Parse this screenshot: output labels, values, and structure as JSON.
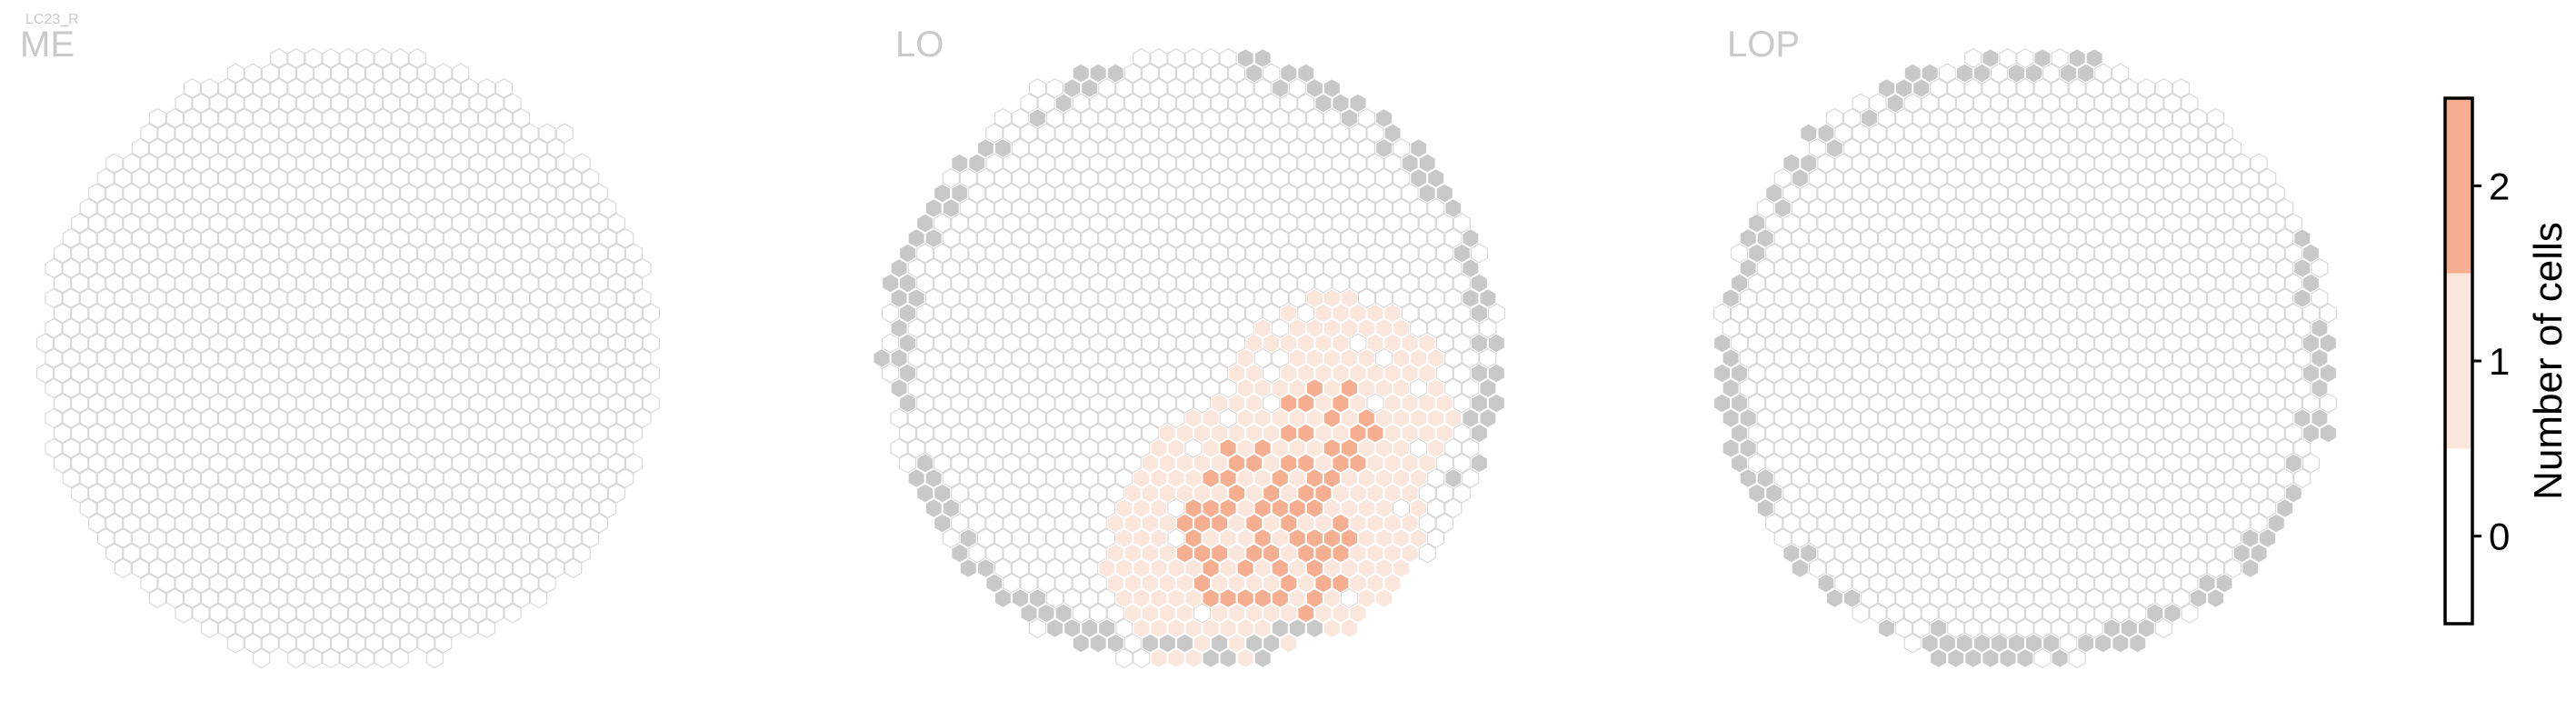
{
  "figure_title": "LC23_R",
  "chart_data": [
    {
      "type": "heatmap",
      "title": "ME",
      "grid_on": false,
      "description": "hexagonal eye map; all columns have 0 cells",
      "default_value": 0,
      "hot_regions": [],
      "outside_cells": []
    },
    {
      "type": "heatmap",
      "title": "LO",
      "grid_on": false,
      "default_value": 0,
      "hot_regions": [
        {
          "value": 1,
          "center": [
            0.22,
            0.62
          ],
          "radius": 0.5
        },
        {
          "value": 1,
          "center": [
            0.38,
            0.55
          ],
          "radius": 0.35
        },
        {
          "value": 1,
          "center": [
            0.45,
            0.18
          ],
          "radius": 0.38
        },
        {
          "value": 2,
          "center": [
            0.25,
            0.55
          ],
          "radius": 0.3
        },
        {
          "value": 2,
          "center": [
            0.42,
            0.22
          ],
          "radius": 0.17
        }
      ],
      "outside_cells": [
        "upper-left",
        "left",
        "lower-left",
        "bottom",
        "right",
        "top-right"
      ]
    },
    {
      "type": "heatmap",
      "title": "LOP",
      "grid_on": false,
      "default_value": 0,
      "hot_regions": [],
      "outside_cells": [
        "left",
        "upper-left",
        "top",
        "right",
        "lower-right",
        "lower-left",
        "bottom"
      ]
    }
  ],
  "colorbar": {
    "label": "Number of cells",
    "ticks": [
      0,
      1,
      2
    ],
    "range": [
      -0.5,
      2.5
    ],
    "colors": {
      "0": "#ffffff",
      "1": "#fbe6dc",
      "2": "#f6ae90"
    },
    "outside_color": "#c8c8c8",
    "empty_stroke": "#d6d6d6"
  }
}
